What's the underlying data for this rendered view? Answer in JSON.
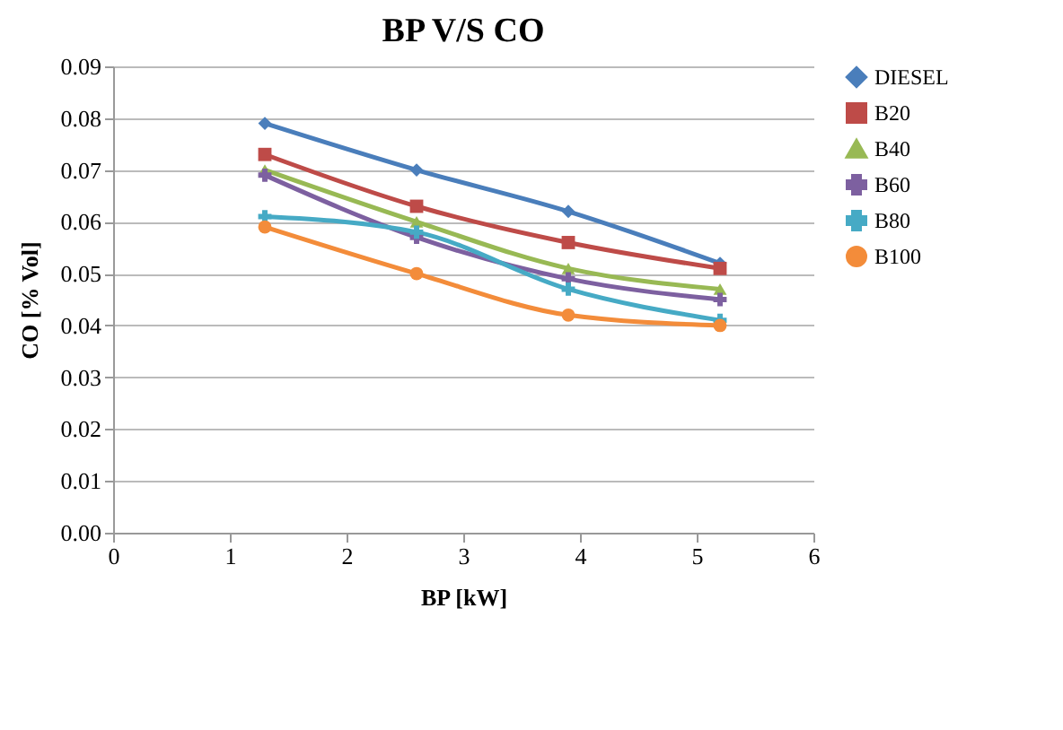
{
  "chart_data": {
    "type": "line",
    "title": "BP V/S CO",
    "xlabel": "BP [kW]",
    "ylabel": "CO [% Vol]",
    "x": [
      1.3,
      2.6,
      3.9,
      5.2
    ],
    "xlim": [
      0,
      6
    ],
    "xticks": [
      0,
      1,
      2,
      3,
      4,
      5,
      6
    ],
    "ylim": [
      0,
      0.09
    ],
    "yticks": [
      {
        "value": 0,
        "label": "0.00"
      },
      {
        "value": 0.01,
        "label": "0.01"
      },
      {
        "value": 0.02,
        "label": "0.02"
      },
      {
        "value": 0.03,
        "label": "0.03"
      },
      {
        "value": 0.04,
        "label": "0.04"
      },
      {
        "value": 0.05,
        "label": "0.05"
      },
      {
        "value": 0.06,
        "label": "0.06"
      },
      {
        "value": 0.07,
        "label": "0.07"
      },
      {
        "value": 0.08,
        "label": "0.08"
      },
      {
        "value": 0.09,
        "label": "0.09"
      }
    ],
    "grid": "y",
    "legend": "right",
    "line_style": "solid",
    "series": [
      {
        "name": "DIESEL",
        "color": "#4a7ebb",
        "marker": "diamond",
        "values": [
          0.079,
          0.07,
          0.062,
          0.052
        ]
      },
      {
        "name": "B20",
        "color": "#be4b48",
        "marker": "square",
        "values": [
          0.073,
          0.063,
          0.056,
          0.051
        ]
      },
      {
        "name": "B40",
        "color": "#98b954",
        "marker": "triangle",
        "values": [
          0.07,
          0.06,
          0.051,
          0.047
        ]
      },
      {
        "name": "B60",
        "color": "#7d60a0",
        "marker": "cross",
        "values": [
          0.069,
          0.057,
          0.049,
          0.045
        ]
      },
      {
        "name": "B80",
        "color": "#46aac5",
        "marker": "cross",
        "values": [
          0.061,
          0.058,
          0.047,
          0.041
        ]
      },
      {
        "name": "B100",
        "color": "#f38c3a",
        "marker": "circle",
        "values": [
          0.059,
          0.05,
          0.042,
          0.04
        ]
      }
    ]
  }
}
